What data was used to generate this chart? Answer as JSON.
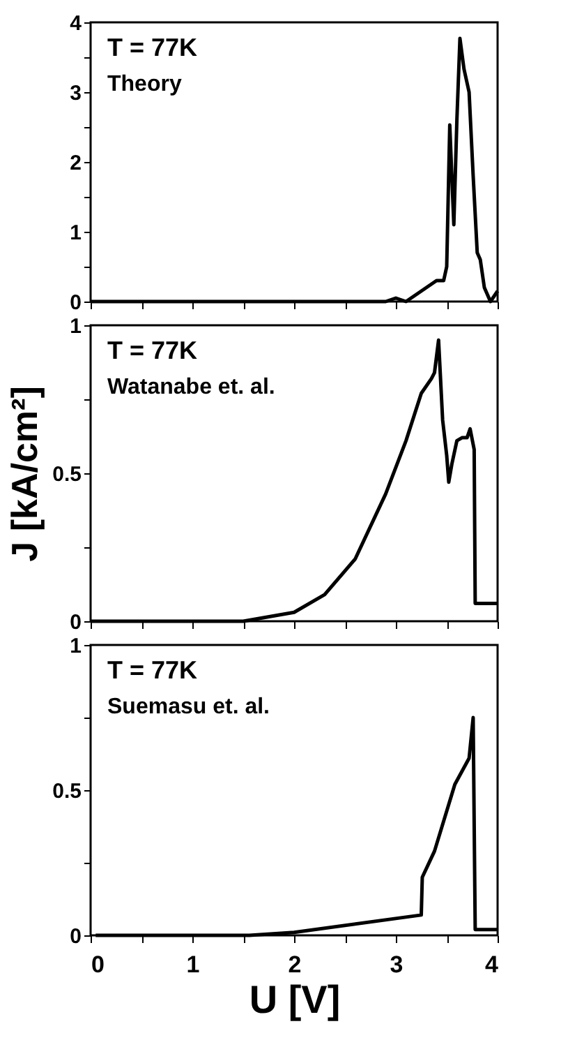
{
  "chart_data": [
    {
      "type": "line",
      "annotations": [
        "T = 77K",
        "Theory"
      ],
      "tick_labels": "y",
      "grid": false,
      "line_style": "solid",
      "marker": "none",
      "xlim": [
        0,
        4
      ],
      "xticks": [
        0,
        {
          "value": 0.5,
          "label": null
        },
        1,
        {
          "value": 1.5,
          "label": null
        },
        2,
        {
          "value": 2.5,
          "label": null
        },
        3,
        {
          "value": 3.5,
          "label": null
        },
        4
      ],
      "ylim": [
        0,
        4
      ],
      "yticks": [
        0,
        {
          "value": 0.5,
          "label": null
        },
        1,
        {
          "value": 1.5,
          "label": null
        },
        2,
        {
          "value": 2.5,
          "label": null
        },
        3,
        {
          "value": 3.5,
          "label": null
        },
        4
      ],
      "series": [
        {
          "color": "#000000",
          "x": [
            0,
            1,
            2,
            2.9,
            3.0,
            3.1,
            3.2,
            3.3,
            3.4,
            3.47,
            3.5,
            3.53,
            3.55,
            3.57,
            3.6,
            3.63,
            3.67,
            3.72,
            3.76,
            3.8,
            3.83,
            3.87,
            3.93,
            4.0
          ],
          "values": [
            0,
            0,
            0,
            0,
            0.05,
            0,
            0.1,
            0.2,
            0.3,
            0.3,
            0.5,
            2.53,
            1.8,
            1.1,
            2.6,
            3.77,
            3.33,
            3.0,
            1.8,
            0.7,
            0.6,
            0.2,
            0,
            0.15
          ]
        }
      ]
    },
    {
      "type": "line",
      "annotations": [
        "T = 77K",
        "Watanabe et. al."
      ],
      "ylabel": "J [kA/cm²]",
      "tick_labels": "y",
      "grid": false,
      "line_style": "solid",
      "marker": "none",
      "xlim": [
        0,
        4
      ],
      "xticks": [
        0,
        {
          "value": 0.5,
          "label": null
        },
        1,
        {
          "value": 1.5,
          "label": null
        },
        2,
        {
          "value": 2.5,
          "label": null
        },
        3,
        {
          "value": 3.5,
          "label": null
        },
        4
      ],
      "ylim": [
        0,
        1
      ],
      "yticks": [
        0,
        {
          "value": 0.25,
          "label": null
        },
        0.5,
        {
          "value": 0.75,
          "label": null
        },
        1
      ],
      "series": [
        {
          "color": "#000000",
          "x": [
            0,
            1.0,
            1.5,
            2.0,
            2.3,
            2.6,
            2.9,
            3.1,
            3.25,
            3.35,
            3.38,
            3.42,
            3.46,
            3.5,
            3.52,
            3.55,
            3.6,
            3.65,
            3.7,
            3.73,
            3.77,
            3.78,
            4.0
          ],
          "values": [
            0,
            0,
            0,
            0.03,
            0.09,
            0.21,
            0.43,
            0.61,
            0.77,
            0.82,
            0.84,
            0.95,
            0.68,
            0.56,
            0.47,
            0.53,
            0.61,
            0.62,
            0.62,
            0.65,
            0.58,
            0.06,
            0.06
          ]
        }
      ]
    },
    {
      "type": "line",
      "annotations": [
        "T = 77K",
        "Suemasu et. al."
      ],
      "xlabel": "U [V]",
      "grid": false,
      "line_style": "solid",
      "marker": "none",
      "xlim": [
        0,
        4
      ],
      "xticks": [
        0,
        {
          "value": 0.5,
          "label": null
        },
        1,
        {
          "value": 1.5,
          "label": null
        },
        2,
        {
          "value": 2.5,
          "label": null
        },
        3,
        {
          "value": 3.5,
          "label": null
        },
        4
      ],
      "ylim": [
        0,
        1
      ],
      "yticks": [
        0,
        {
          "value": 0.25,
          "label": null
        },
        0.5,
        {
          "value": 0.75,
          "label": null
        },
        1
      ],
      "series": [
        {
          "color": "#000000",
          "x": [
            0.05,
            1.0,
            1.56,
            2.0,
            3.25,
            3.26,
            3.38,
            3.58,
            3.72,
            3.76,
            3.78,
            4.0
          ],
          "values": [
            0,
            0,
            0,
            0.01,
            0.07,
            0.2,
            0.29,
            0.52,
            0.61,
            0.75,
            0.02,
            0.02
          ]
        }
      ]
    }
  ]
}
